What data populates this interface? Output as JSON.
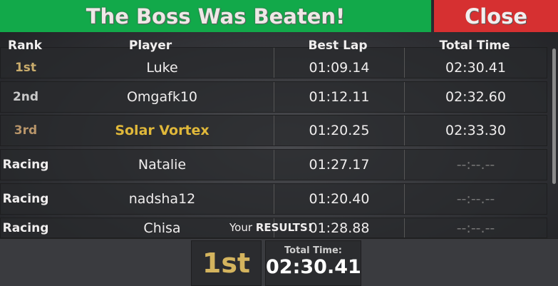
{
  "header": {
    "title": "The Boss Was Beaten!",
    "close_label": "Close"
  },
  "columns": [
    "Rank",
    "Player",
    "Best Lap",
    "Total Time"
  ],
  "rows": [
    {
      "rank": "1st",
      "player": "Luke",
      "best_lap": "01:09.14",
      "total_time": "02:30.41"
    },
    {
      "rank": "2nd",
      "player": "Omgafk10",
      "best_lap": "01:12.11",
      "total_time": "02:32.60"
    },
    {
      "rank": "3rd",
      "player": "Solar Vortex",
      "best_lap": "01:20.25",
      "total_time": "02:33.30"
    },
    {
      "rank": "Racing",
      "player": "Natalie",
      "best_lap": "01:27.17",
      "total_time": "--:--.--"
    },
    {
      "rank": "Racing",
      "player": "nadsha12",
      "best_lap": "01:20.40",
      "total_time": "--:--.--"
    },
    {
      "rank": "Racing",
      "player": "Chisa",
      "best_lap": "01:28.88",
      "total_time": "--:--.--"
    }
  ],
  "results": {
    "prefix": "Your",
    "label": "RESULTS!",
    "rank": "1st",
    "total_time_label": "Total Time:",
    "total_time": "02:30.41"
  },
  "colors": {
    "title_bar": "#12a94a",
    "close": "#d63031",
    "gold": "#d4b45e",
    "highlight_player": "#e0b83a"
  }
}
